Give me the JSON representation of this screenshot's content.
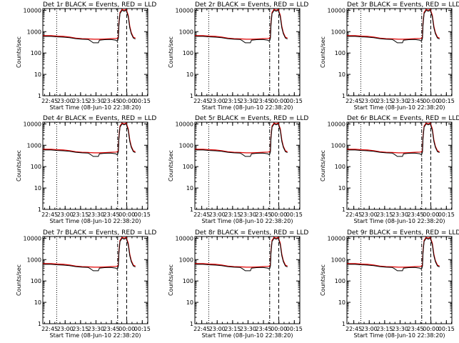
{
  "chart_data": [
    {
      "type": "line",
      "title": "Det 1r BLACK = Events, RED = LLD"
    },
    {
      "type": "line",
      "title": "Det 2r BLACK = Events, RED = LLD"
    },
    {
      "type": "line",
      "title": "Det 3r BLACK = Events, RED = LLD"
    },
    {
      "type": "line",
      "title": "Det 4r BLACK = Events, RED = LLD"
    },
    {
      "type": "line",
      "title": "Det 5r BLACK = Events, RED = LLD"
    },
    {
      "type": "line",
      "title": "Det 6r BLACK = Events, RED = LLD"
    },
    {
      "type": "line",
      "title": "Det 7r BLACK = Events, RED = LLD"
    },
    {
      "type": "line",
      "title": "Det 8r BLACK = Events, RED = LLD"
    },
    {
      "type": "line",
      "title": "Det 9r BLACK = Events, RED = LLD"
    }
  ],
  "common": {
    "xlabel": "Start Time (08-Jun-10 22:38:20)",
    "ylabel": "Counts/sec",
    "x_start": "22:38:20",
    "xlim_minutes": [
      0,
      102
    ],
    "yscale": "log",
    "ylim": [
      1,
      12000
    ],
    "x_ticks": [
      {
        "minute": 6.67,
        "label": "22:45"
      },
      {
        "minute": 21.67,
        "label": "23:00"
      },
      {
        "minute": 36.67,
        "label": "23:15"
      },
      {
        "minute": 51.67,
        "label": "23:30"
      },
      {
        "minute": 66.67,
        "label": "23:45"
      },
      {
        "minute": 81.67,
        "label": "00:00"
      },
      {
        "minute": 96.67,
        "label": "00:15"
      }
    ],
    "y_ticks": [
      {
        "value": 1,
        "label": "1"
      },
      {
        "value": 10,
        "label": "10"
      },
      {
        "value": 100,
        "label": "100"
      },
      {
        "value": 1000,
        "label": "1000"
      },
      {
        "value": 10000,
        "label": "10000"
      }
    ],
    "events_color": "#000000",
    "lld_color": "#e00000",
    "events_series": {
      "name": "Events",
      "points": [
        [
          0,
          600
        ],
        [
          8,
          600
        ],
        [
          14,
          570
        ],
        [
          20,
          550
        ],
        [
          26,
          520
        ],
        [
          32,
          470
        ],
        [
          38,
          440
        ],
        [
          44,
          430
        ],
        [
          46,
          380
        ],
        [
          49,
          300
        ],
        [
          54,
          300
        ],
        [
          55,
          400
        ],
        [
          60,
          420
        ],
        [
          66,
          430
        ],
        [
          71,
          400
        ],
        [
          72.5,
          350
        ],
        [
          73.5,
          500
        ],
        [
          74,
          2000
        ],
        [
          75,
          7000
        ],
        [
          77,
          10000
        ],
        [
          79,
          9000
        ],
        [
          81,
          10000
        ],
        [
          83,
          5000
        ],
        [
          84.5,
          1500
        ],
        [
          86,
          800
        ],
        [
          88,
          500
        ],
        [
          90,
          450
        ]
      ]
    },
    "lld_series": {
      "name": "LLD",
      "points": [
        [
          0,
          650
        ],
        [
          8,
          650
        ],
        [
          14,
          620
        ],
        [
          20,
          600
        ],
        [
          26,
          560
        ],
        [
          32,
          500
        ],
        [
          38,
          470
        ],
        [
          44,
          460
        ],
        [
          50,
          440
        ],
        [
          55,
          440
        ],
        [
          60,
          450
        ],
        [
          66,
          470
        ],
        [
          71,
          480
        ],
        [
          73,
          500
        ],
        [
          73.5,
          700
        ],
        [
          74,
          2500
        ],
        [
          75,
          8000
        ],
        [
          77,
          11000
        ],
        [
          79,
          10000
        ],
        [
          81,
          11000
        ],
        [
          83,
          6000
        ],
        [
          84.5,
          1800
        ],
        [
          86,
          900
        ],
        [
          88,
          550
        ],
        [
          90,
          500
        ]
      ]
    },
    "vlines": [
      {
        "minute": 13.5,
        "style": "dot"
      },
      {
        "minute": 72.7,
        "style": "dashdot"
      },
      {
        "minute": 81.5,
        "style": "dash"
      }
    ]
  }
}
